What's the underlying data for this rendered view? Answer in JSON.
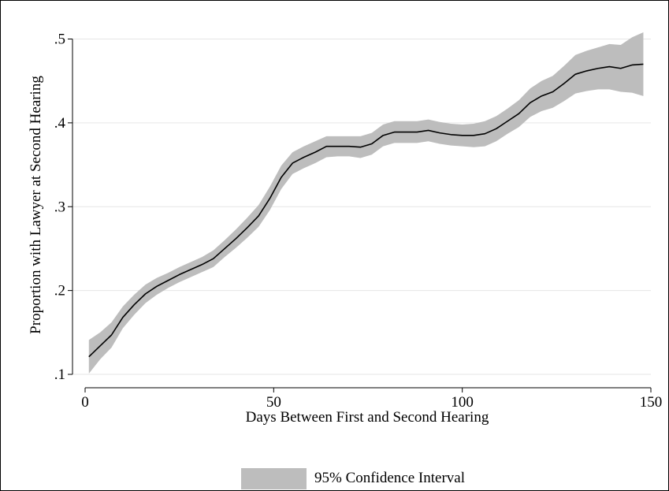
{
  "chart_data": {
    "type": "line",
    "title": "",
    "xlabel": "Days Between First and Second Hearing",
    "ylabel": "Proportion with Lawyer at Second Hearing",
    "xlim": [
      0,
      150
    ],
    "ylim": [
      0.1,
      0.5
    ],
    "x_ticks": [
      0,
      50,
      100,
      150
    ],
    "x_tick_labels": [
      "0",
      "50",
      "100",
      "150"
    ],
    "y_ticks": [
      0.1,
      0.2,
      0.3,
      0.4,
      0.5
    ],
    "y_tick_labels": [
      ".1",
      ".2",
      ".3",
      ".4",
      ".5"
    ],
    "grid": true,
    "legend": {
      "position": "bottom",
      "entries": [
        "95% Confidence Interval"
      ]
    },
    "colors": {
      "line": "#000000",
      "band": "#bdbdbd",
      "grid": "#e6e6e6"
    },
    "series": [
      {
        "type": "line",
        "x": [
          1,
          4,
          7,
          10,
          13,
          16,
          19,
          22,
          25,
          28,
          31,
          34,
          37,
          40,
          43,
          46,
          49,
          52,
          55,
          58,
          61,
          64,
          67,
          70,
          73,
          76,
          79,
          82,
          85,
          88,
          91,
          94,
          97,
          100,
          103,
          106,
          109,
          112,
          115,
          118,
          121,
          124,
          127,
          130,
          133,
          136,
          139,
          142,
          145,
          148
        ],
        "values": [
          0.121,
          0.134,
          0.147,
          0.168,
          0.183,
          0.196,
          0.205,
          0.212,
          0.219,
          0.225,
          0.231,
          0.238,
          0.25,
          0.262,
          0.275,
          0.289,
          0.31,
          0.335,
          0.352,
          0.359,
          0.365,
          0.372,
          0.372,
          0.372,
          0.371,
          0.375,
          0.385,
          0.389,
          0.389,
          0.389,
          0.391,
          0.388,
          0.386,
          0.385,
          0.385,
          0.387,
          0.393,
          0.402,
          0.411,
          0.424,
          0.432,
          0.437,
          0.447,
          0.458,
          0.462,
          0.465,
          0.467,
          0.465,
          0.469,
          0.47
        ]
      },
      {
        "name": "95% Confidence Interval",
        "type": "band",
        "x": [
          1,
          4,
          7,
          10,
          13,
          16,
          19,
          22,
          25,
          28,
          31,
          34,
          37,
          40,
          43,
          46,
          49,
          52,
          55,
          58,
          61,
          64,
          67,
          70,
          73,
          76,
          79,
          82,
          85,
          88,
          91,
          94,
          97,
          100,
          103,
          106,
          109,
          112,
          115,
          118,
          121,
          124,
          127,
          130,
          133,
          136,
          139,
          142,
          145,
          148
        ],
        "lower": [
          0.101,
          0.118,
          0.132,
          0.155,
          0.171,
          0.185,
          0.195,
          0.203,
          0.21,
          0.216,
          0.222,
          0.228,
          0.24,
          0.251,
          0.263,
          0.276,
          0.296,
          0.321,
          0.339,
          0.346,
          0.352,
          0.359,
          0.36,
          0.36,
          0.358,
          0.362,
          0.372,
          0.376,
          0.376,
          0.376,
          0.378,
          0.375,
          0.373,
          0.372,
          0.371,
          0.372,
          0.378,
          0.387,
          0.395,
          0.407,
          0.414,
          0.418,
          0.426,
          0.435,
          0.438,
          0.44,
          0.44,
          0.437,
          0.436,
          0.432
        ],
        "upper": [
          0.141,
          0.15,
          0.162,
          0.181,
          0.195,
          0.207,
          0.215,
          0.221,
          0.228,
          0.234,
          0.24,
          0.248,
          0.26,
          0.273,
          0.287,
          0.302,
          0.324,
          0.349,
          0.365,
          0.372,
          0.378,
          0.384,
          0.384,
          0.384,
          0.384,
          0.388,
          0.398,
          0.402,
          0.402,
          0.402,
          0.404,
          0.401,
          0.399,
          0.398,
          0.399,
          0.402,
          0.408,
          0.417,
          0.427,
          0.441,
          0.45,
          0.456,
          0.468,
          0.481,
          0.486,
          0.49,
          0.494,
          0.493,
          0.502,
          0.508
        ]
      }
    ]
  }
}
